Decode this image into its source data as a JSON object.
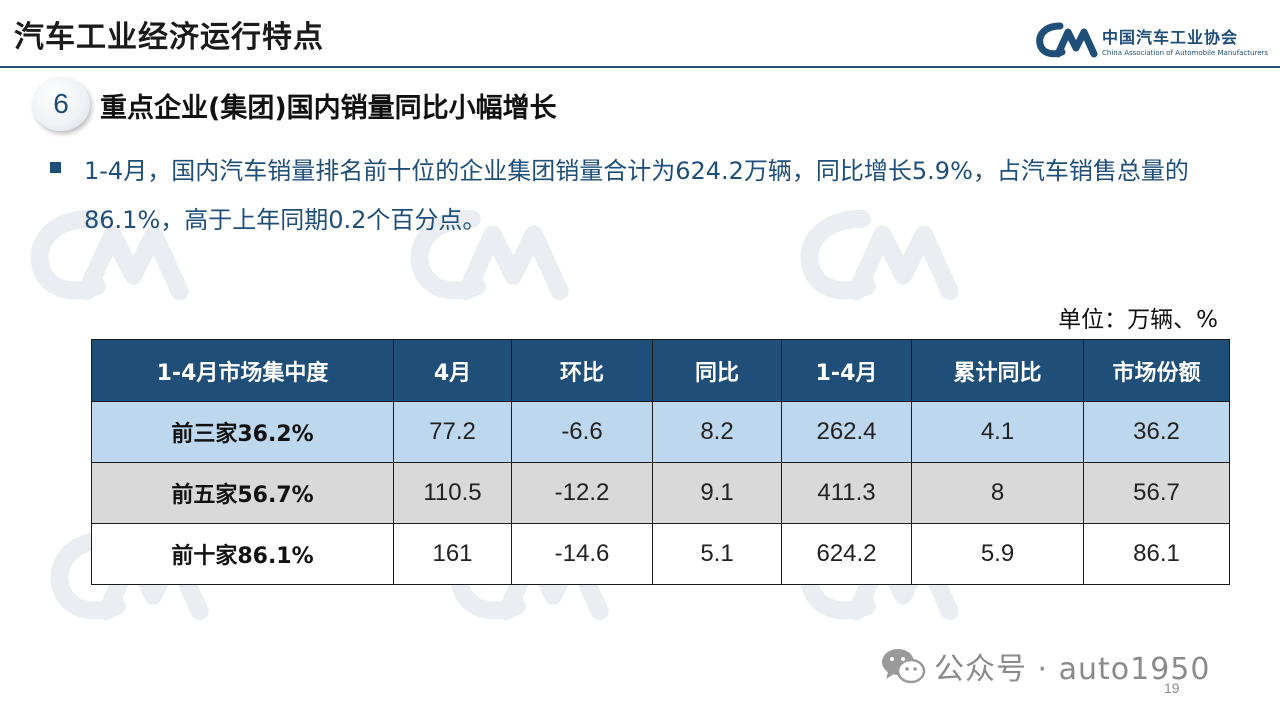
{
  "header": {
    "title": "汽车工业经济运行特点",
    "logo_cn": "中国汽车工业协会",
    "logo_en": "China Association of Automobile Manufacturers"
  },
  "section": {
    "number": "6",
    "title": "重点企业(集团)国内销量同比小幅增长"
  },
  "bullet": {
    "text": "1-4月，国内汽车销量排名前十位的企业集团销量合计为624.2万辆，同比增长5.9%，占汽车销售总量的86.1%，高于上年同期0.2个百分点。"
  },
  "unit_label": "单位：万辆、%",
  "table": {
    "headers": [
      "1-4月市场集中度",
      "4月",
      "环比",
      "同比",
      "1-4月",
      "累计同比",
      "市场份额"
    ],
    "rows": [
      [
        "前三家36.2%",
        "77.2",
        "-6.6",
        "8.2",
        "262.4",
        "4.1",
        "36.2"
      ],
      [
        "前五家56.7%",
        "110.5",
        "-12.2",
        "9.1",
        "411.3",
        "8",
        "56.7"
      ],
      [
        "前十家86.1%",
        "161",
        "-14.6",
        "5.1",
        "624.2",
        "5.9",
        "86.1"
      ]
    ]
  },
  "footer": {
    "text": "公众号 · auto1950",
    "page_number": "19"
  },
  "colors": {
    "brand": "#1f4e79",
    "row1": "#bdd7ee",
    "row2": "#d9d9d9"
  }
}
